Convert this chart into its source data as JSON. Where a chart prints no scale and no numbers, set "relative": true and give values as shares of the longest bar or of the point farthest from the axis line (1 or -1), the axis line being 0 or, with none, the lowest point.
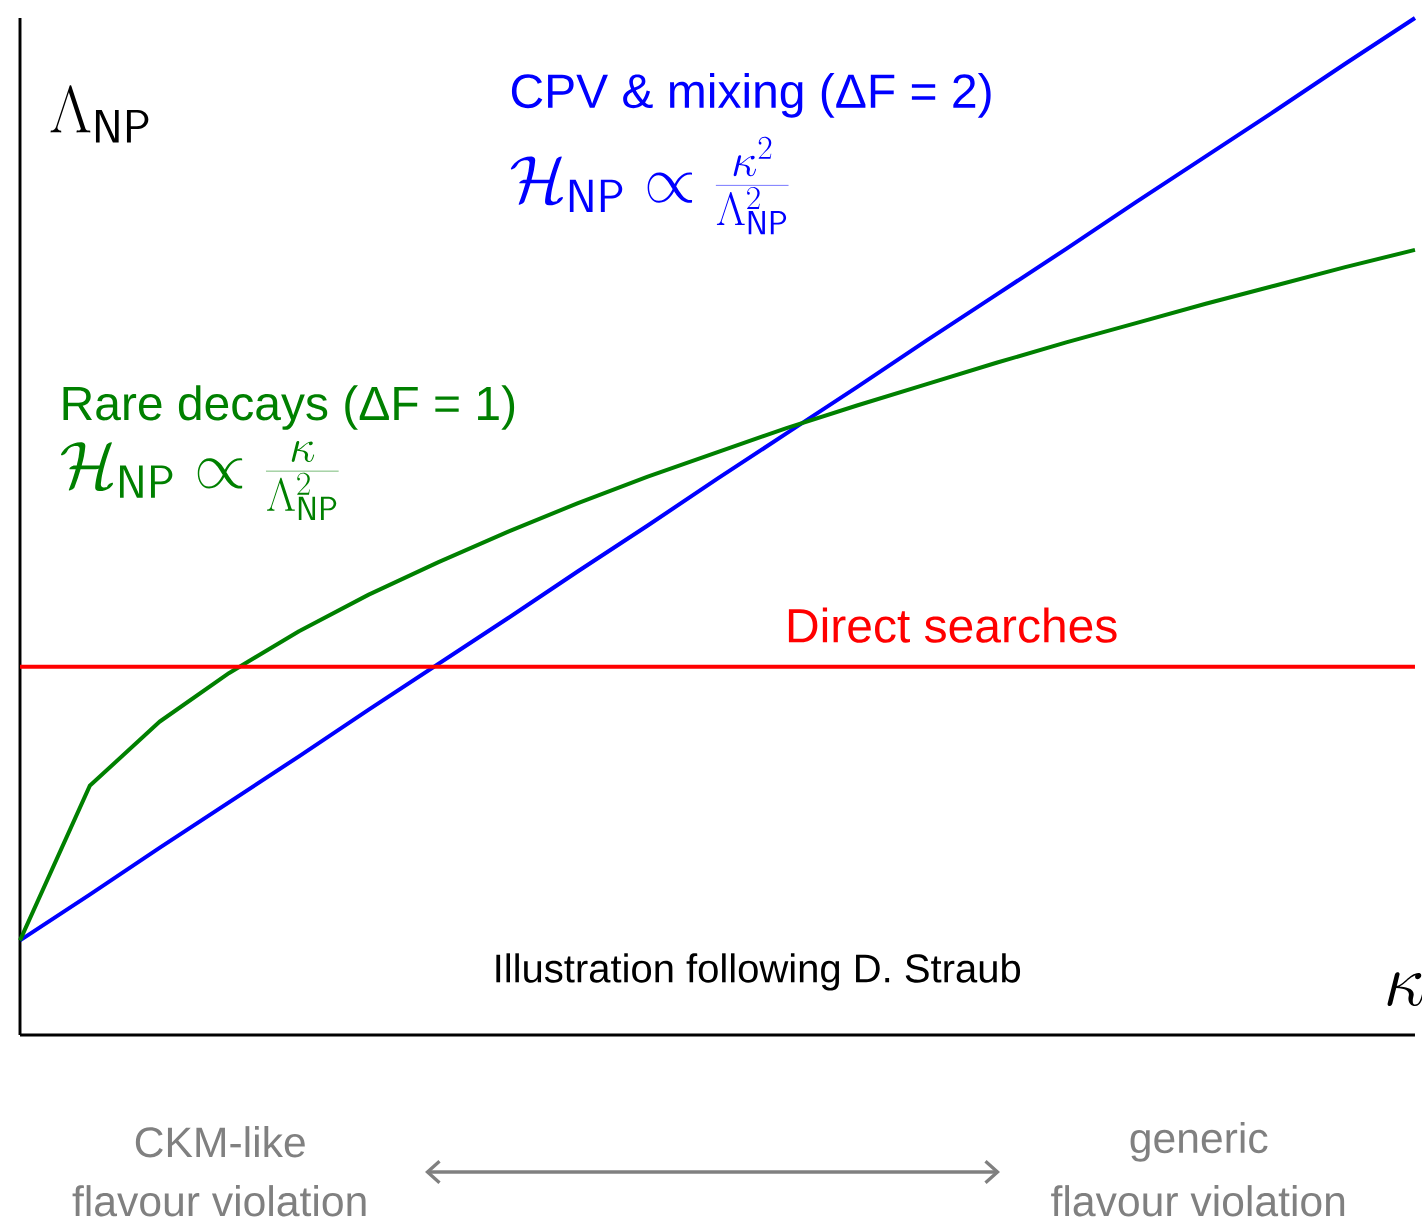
{
  "chart_data": {
    "type": "line",
    "relative": true,
    "xlabel": "\\kappa",
    "ylabel": "\\Lambda_{\\mathsf{NP}}",
    "categories": [
      null,
      null,
      null,
      null,
      null,
      null,
      null,
      null,
      null,
      null,
      null,
      null,
      null,
      null,
      null,
      null,
      null,
      null,
      null,
      null,
      null
    ],
    "series": [
      {
        "name": "CPV & mixing (ΔF = 2)",
        "color": "#0000ff",
        "values": [
          0.093,
          0.138,
          0.184,
          0.229,
          0.274,
          0.32,
          0.365,
          0.41,
          0.456,
          0.501,
          0.547,
          0.592,
          0.637,
          0.683,
          0.728,
          0.773,
          0.819,
          0.864,
          0.909,
          0.955,
          1.0
        ]
      },
      {
        "name": "Rare decays (ΔF = 1)",
        "color": "#008000",
        "values": [
          0.093,
          0.245,
          0.308,
          0.356,
          0.397,
          0.433,
          0.465,
          0.495,
          0.523,
          0.549,
          0.573,
          0.597,
          0.619,
          0.64,
          0.661,
          0.681,
          0.7,
          0.719,
          0.737,
          0.755,
          0.772
        ]
      },
      {
        "name": "Direct searches",
        "color": "#ff0000",
        "values": [
          0.362,
          0.362,
          0.362,
          0.362,
          0.362,
          0.362,
          0.362,
          0.362,
          0.362,
          0.362,
          0.362,
          0.362,
          0.362,
          0.362,
          0.362,
          0.362,
          0.362,
          0.362,
          0.362,
          0.362,
          0.362
        ]
      }
    ],
    "annotations": [
      "\\mathcal{H}_{\\mathsf{NP}} \\propto \\frac{\\kappa^2}{\\Lambda_{\\mathsf{NP}}^2}",
      "\\mathcal{H}_{\\mathsf{NP}} \\propto \\frac{\\kappa}{\\Lambda_{\\mathsf{NP}}^2}",
      "Illustration following D. Straub",
      "CKM-like",
      "flavour violation",
      "generic",
      "flavour violation"
    ],
    "marker": "none"
  }
}
